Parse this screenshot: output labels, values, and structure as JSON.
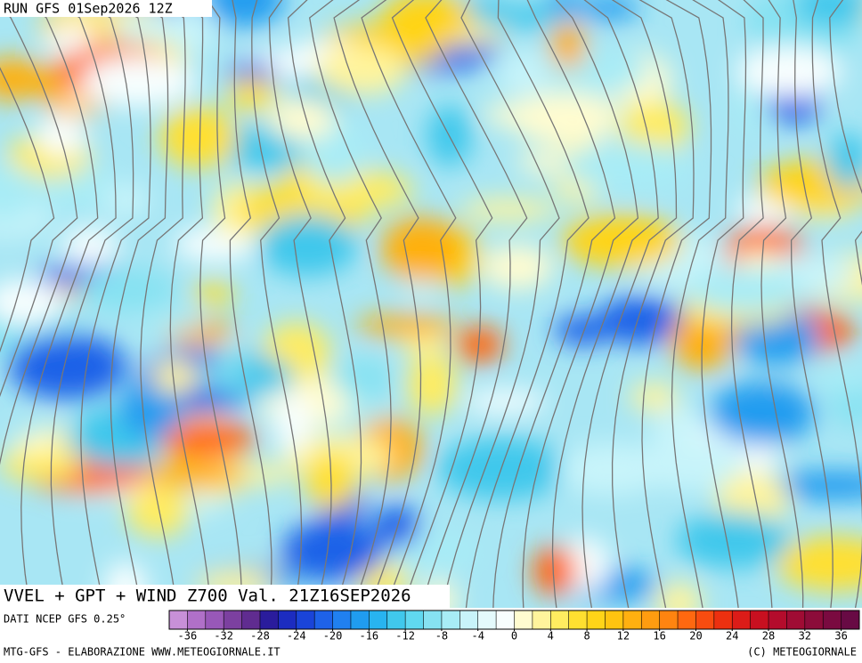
{
  "header": {
    "run": "RUN GFS 01Sep2026 12Z"
  },
  "map": {
    "title": "VVEL + GPT + WIND Z700 Val. 21Z16SEP2026",
    "source": "DATI NCEP GFS 0.25°"
  },
  "colorbar": {
    "lim": [
      -38,
      38
    ],
    "ticks": [
      -36,
      -32,
      -28,
      -24,
      -20,
      -16,
      -12,
      -8,
      -4,
      0,
      4,
      8,
      12,
      16,
      20,
      24,
      28,
      32,
      36
    ],
    "colors": [
      "#c890d8",
      "#b070c8",
      "#9858b8",
      "#7c40a0",
      "#602c90",
      "#2a1c9c",
      "#1c2cc0",
      "#1a44d8",
      "#1e62e8",
      "#2080f0",
      "#209cf0",
      "#28b4f0",
      "#40c8ec",
      "#60d8f0",
      "#86e2f2",
      "#a8ecf6",
      "#c8f4fa",
      "#e4fafc",
      "#f8fefe",
      "#fffcd0",
      "#fff49c",
      "#ffec60",
      "#ffe030",
      "#ffd418",
      "#ffc410",
      "#ffb010",
      "#ff9c10",
      "#ff8410",
      "#ff6810",
      "#f84c10",
      "#ec3010",
      "#dc1c18",
      "#c81020",
      "#b40c2c",
      "#a00c34",
      "#8c0c3a",
      "#7a0a40",
      "#680a44"
    ]
  },
  "footer": {
    "left": "MTG-GFS - ELABORAZIONE WWW.METEOGIORNALE.IT",
    "right": "(C) METEOGIORNALE"
  }
}
